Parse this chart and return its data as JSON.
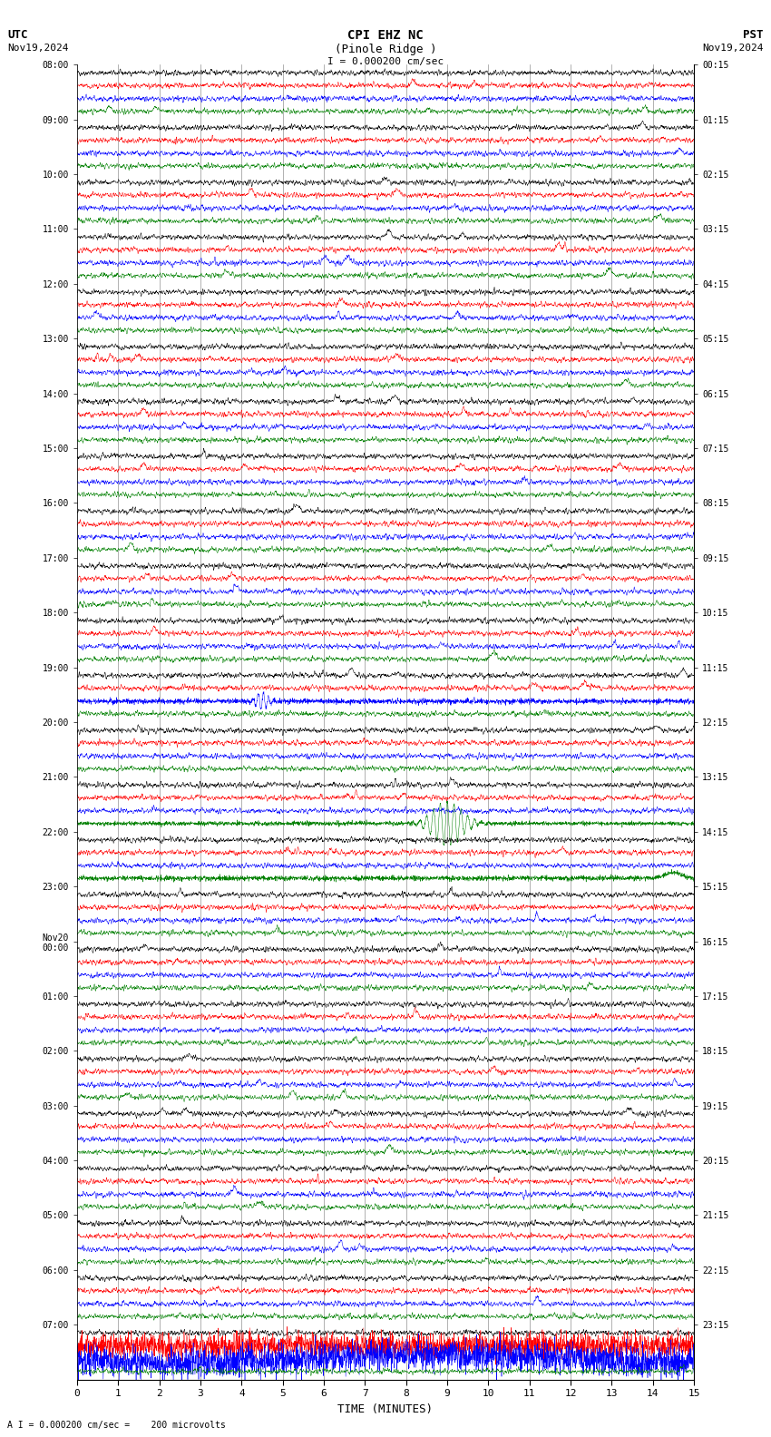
{
  "title_line1": "CPI EHZ NC",
  "title_line2": "(Pinole Ridge )",
  "scale_label": "I = 0.000200 cm/sec",
  "utc_label": "UTC",
  "utc_date": "Nov19,2024",
  "pst_label": "PST",
  "pst_date": "Nov19,2024",
  "xlabel": "TIME (MINUTES)",
  "bottom_label": "A I = 0.000200 cm/sec =    200 microvolts",
  "left_times": [
    "08:00",
    "09:00",
    "10:00",
    "11:00",
    "12:00",
    "13:00",
    "14:00",
    "15:00",
    "16:00",
    "17:00",
    "18:00",
    "19:00",
    "20:00",
    "21:00",
    "22:00",
    "23:00",
    "Nov20\n00:00",
    "01:00",
    "02:00",
    "03:00",
    "04:00",
    "05:00",
    "06:00",
    "07:00"
  ],
  "right_times": [
    "00:15",
    "01:15",
    "02:15",
    "03:15",
    "04:15",
    "05:15",
    "06:15",
    "07:15",
    "08:15",
    "09:15",
    "10:15",
    "11:15",
    "12:15",
    "13:15",
    "14:15",
    "15:15",
    "16:15",
    "17:15",
    "18:15",
    "19:15",
    "20:15",
    "21:15",
    "22:15",
    "23:15"
  ],
  "n_rows": 24,
  "n_traces_per_row": 4,
  "colors": [
    "black",
    "red",
    "blue",
    "green"
  ],
  "bg_color": "white",
  "grid_color": "#888888",
  "x_ticks": [
    0,
    1,
    2,
    3,
    4,
    5,
    6,
    7,
    8,
    9,
    10,
    11,
    12,
    13,
    14,
    15
  ],
  "n_minutes": 15,
  "noise_seed": 42,
  "fig_width": 8.5,
  "fig_height": 15.84,
  "dpi": 100
}
